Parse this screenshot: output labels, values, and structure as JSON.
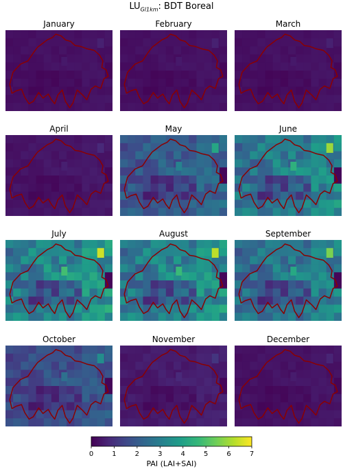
{
  "figure": {
    "title_prefix": "LU",
    "title_subscript": "Gl1km",
    "title_suffix": ": BDT Boreal"
  },
  "panels": [
    {
      "month": "January",
      "level": 0.35
    },
    {
      "month": "February",
      "level": 0.35
    },
    {
      "month": "March",
      "level": 0.35
    },
    {
      "month": "April",
      "level": 0.45
    },
    {
      "month": "May",
      "level": 2.3
    },
    {
      "month": "June",
      "level": 3.3
    },
    {
      "month": "July",
      "level": 3.6
    },
    {
      "month": "August",
      "level": 3.5
    },
    {
      "month": "September",
      "level": 3.1
    },
    {
      "month": "October",
      "level": 1.9
    },
    {
      "month": "November",
      "level": 0.6
    },
    {
      "month": "December",
      "level": 0.4
    }
  ],
  "colorbar": {
    "label": "PAI (LAI+SAI)",
    "min": 0,
    "max": 7,
    "ticks": [
      "0",
      "1",
      "2",
      "3",
      "4",
      "5",
      "6",
      "7"
    ],
    "colormap": "viridis"
  },
  "colors": {
    "border": "#8b0000"
  }
}
